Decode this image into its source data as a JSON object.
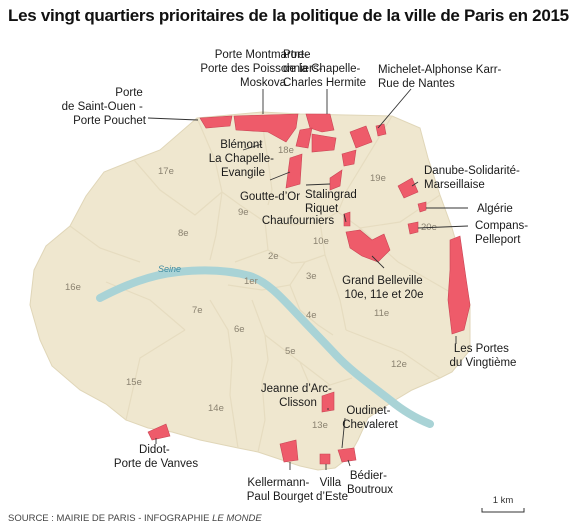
{
  "title": "Les vingt quartiers prioritaires de la politique de la ville de Paris en 2015",
  "source": "SOURCE : MAIRIE DE PARIS - INFOGRAPHIE ",
  "source_brand": "LE MONDE",
  "scale_label": "1 km",
  "river_name": "Seine",
  "colors": {
    "city": "#efe7cf",
    "arrondissement_border": "#e6dcc0",
    "river": "#a9d3d6",
    "zone": "#ee5b6a"
  },
  "arrondissements": [
    "1er",
    "2e",
    "3e",
    "4e",
    "5e",
    "6e",
    "7e",
    "8e",
    "9e",
    "10e",
    "11e",
    "12e",
    "13e",
    "14e",
    "15e",
    "16e",
    "17e",
    "18e",
    "19e",
    "20e"
  ],
  "quartiers": [
    {
      "lines": [
        "Porte Montmartre-",
        "Porte des Poissonniers-",
        "Moskova"
      ]
    },
    {
      "lines": [
        "Porte",
        "de la Chapelle-",
        "Charles Hermite"
      ]
    },
    {
      "lines": [
        "Michelet-Alphonse Karr-",
        "Rue de Nantes"
      ]
    },
    {
      "lines": [
        "Porte",
        "de Saint-Ouen -",
        "Porte Pouchet"
      ]
    },
    {
      "lines": [
        "Blémont",
        "La Chapelle-",
        "Evangile"
      ]
    },
    {
      "lines": [
        "Goutte-d’Or"
      ]
    },
    {
      "lines": [
        "Stalingrad",
        "Riquet"
      ]
    },
    {
      "lines": [
        "Chaufourniers"
      ]
    },
    {
      "lines": [
        "Danube-Solidarité-",
        "Marseillaise"
      ]
    },
    {
      "lines": [
        "Algérie"
      ]
    },
    {
      "lines": [
        "Compans-",
        "Pelleport"
      ]
    },
    {
      "lines": [
        "Grand Belleville",
        "10e, 11e et 20e"
      ]
    },
    {
      "lines": [
        "Les Portes",
        "du Vingtième"
      ]
    },
    {
      "lines": [
        "Jeanne d’Arc-",
        "Clisson"
      ]
    },
    {
      "lines": [
        "Oudinet-",
        "Chevaleret"
      ]
    },
    {
      "lines": [
        "Didot-",
        "Porte de Vanves"
      ]
    },
    {
      "lines": [
        "Kellermann-",
        "Paul Bourget"
      ]
    },
    {
      "lines": [
        "Villa",
        "d’Este"
      ]
    },
    {
      "lines": [
        "Bédier-",
        "Boutroux"
      ]
    }
  ]
}
